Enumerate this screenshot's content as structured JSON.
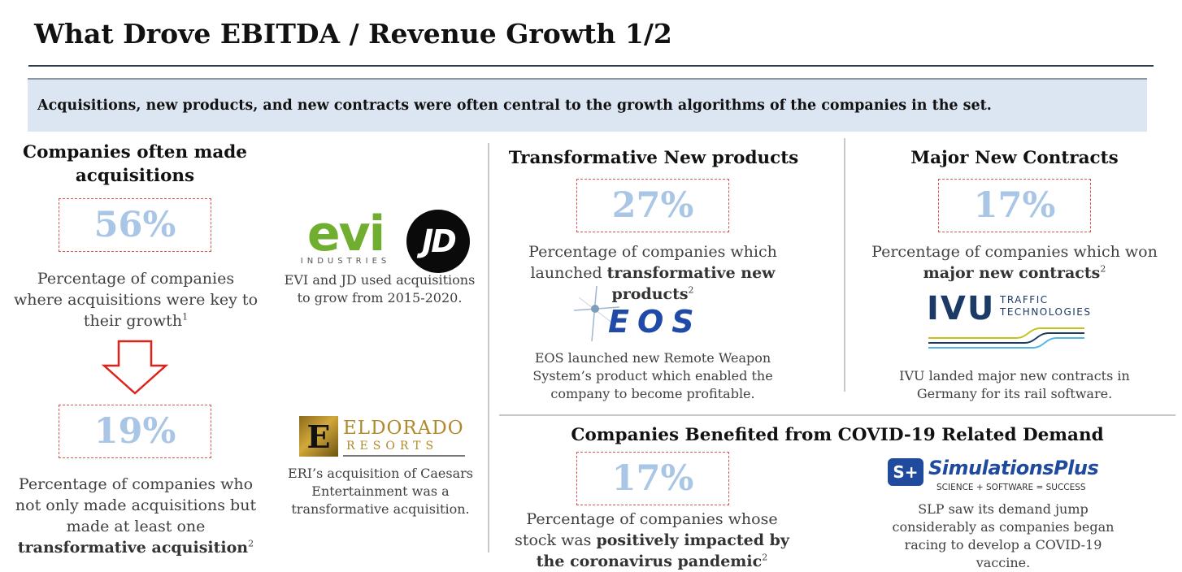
{
  "page": {
    "title": "What Drove EBITDA / Revenue Growth 1/2"
  },
  "banner": {
    "text": "Acquisitions, new products, and new contracts were often central to the growth algorithms of the companies in the set."
  },
  "acquisitions": {
    "heading": "Companies often made acquisitions",
    "stat1": {
      "value": "56%",
      "desc_pre": "Percentage of companies where acquisitions were key to their growth",
      "sup": "1"
    },
    "stat2": {
      "value": "19%",
      "desc_pre": "Percentage of companies who not only made acquisitions but made at least one ",
      "desc_bold": "transformative acquisition",
      "sup": "2"
    },
    "logos": {
      "evi_main": "evi",
      "evi_sub": "INDUSTRIES",
      "jd": "JD",
      "eldorado_main": "ELDORADO",
      "eldorado_sub": "RESORTS",
      "eldorado_mark": "E"
    },
    "caption1": "EVI and JD used acquisitions to grow from 2015-2020.",
    "caption2": "ERI’s acquisition of Caesars Entertainment was a transformative acquisition."
  },
  "products": {
    "heading": "Transformative New products",
    "value": "27%",
    "desc_pre": "Percentage of companies which launched ",
    "desc_bold": "transformative new products",
    "sup": "2",
    "logo_text": "EOS",
    "caption": "EOS launched new Remote Weapon System’s product which enabled the company to become profitable."
  },
  "contracts": {
    "heading": "Major New Contracts",
    "value": "17%",
    "desc_pre": "Percentage of companies which won ",
    "desc_bold": "major new contracts",
    "sup": "2",
    "logo_main": "IVU",
    "logo_sub1": "TRAFFIC",
    "logo_sub2": "TECHNOLOGIES",
    "caption": "IVU landed major new contracts in Germany for its rail software."
  },
  "covid": {
    "heading": "Companies Benefited from COVID-19 Related Demand",
    "value": "17%",
    "desc_pre": "Percentage of companies whose stock was ",
    "desc_bold": "positively impacted by the coronavirus pandemic",
    "sup": "2",
    "logo_mark": "S+",
    "logo_main": "SimulationsPlus",
    "logo_tagline": "SCIENCE + SOFTWARE = SUCCESS",
    "caption": "SLP saw its demand jump considerably as companies began racing to develop a COVID-19 vaccine."
  },
  "colors": {
    "percent": "#a9c6e6",
    "dashed_border": "#d9534f",
    "banner": "#dce6f2",
    "arrow": "#e0201b"
  }
}
